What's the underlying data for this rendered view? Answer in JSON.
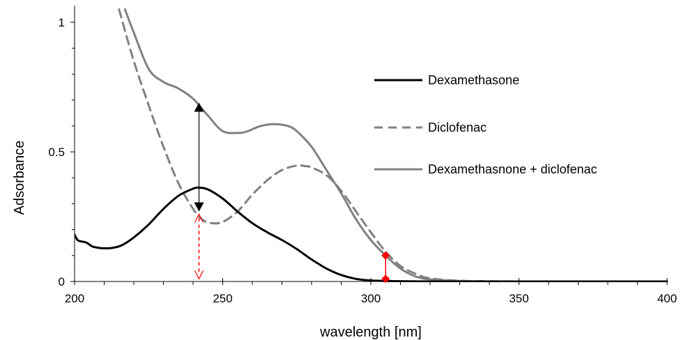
{
  "chart_data": {
    "type": "line",
    "xlabel": "wavelength [nm]",
    "ylabel": "Adsorbance",
    "xlim": [
      200,
      400
    ],
    "ylim": [
      0,
      1.05
    ],
    "x_ticks": [
      200,
      250,
      300,
      350,
      400
    ],
    "x_tick_labels": [
      "200",
      "250",
      "300",
      "350",
      "400"
    ],
    "y_ticks": [
      0,
      0.5,
      1
    ],
    "y_tick_labels": [
      "0",
      "0.5",
      "1"
    ],
    "grid": false,
    "legend_position": "right",
    "series": [
      {
        "name": "Dexamethasone",
        "color": "#000000",
        "style": "solid",
        "x": [
          200,
          201,
          202,
          204,
          206,
          208,
          210,
          213,
          216,
          220,
          225,
          230,
          235,
          240,
          242,
          245,
          250,
          255,
          260,
          265,
          270,
          275,
          280,
          285,
          290,
          295,
          300,
          305,
          310,
          320,
          330,
          350,
          380,
          400
        ],
        "y": [
          0.18,
          0.16,
          0.155,
          0.15,
          0.135,
          0.13,
          0.128,
          0.13,
          0.14,
          0.17,
          0.22,
          0.28,
          0.33,
          0.358,
          0.362,
          0.355,
          0.32,
          0.27,
          0.225,
          0.19,
          0.16,
          0.125,
          0.085,
          0.05,
          0.025,
          0.01,
          0.004,
          0.002,
          0.001,
          0.0,
          0.0,
          0.0,
          0.0,
          0.0
        ]
      },
      {
        "name": "Diclofenac",
        "color": "#808080",
        "style": "dashed",
        "x": [
          215,
          220,
          225,
          230,
          235,
          240,
          243,
          246,
          250,
          255,
          260,
          265,
          270,
          275,
          278,
          280,
          285,
          290,
          295,
          300,
          305,
          310,
          315,
          320,
          330,
          340,
          350,
          370,
          400
        ],
        "y": [
          1.05,
          0.85,
          0.68,
          0.52,
          0.38,
          0.28,
          0.24,
          0.225,
          0.23,
          0.27,
          0.335,
          0.39,
          0.43,
          0.447,
          0.445,
          0.44,
          0.41,
          0.35,
          0.27,
          0.19,
          0.115,
          0.06,
          0.03,
          0.012,
          0.003,
          0.001,
          0.0,
          0.0,
          0.0
        ]
      },
      {
        "name": "Dexamethasnone + diclofenac",
        "color": "#808080",
        "style": "solid",
        "x": [
          217,
          220,
          225,
          230,
          235,
          240,
          245,
          250,
          255,
          258,
          262,
          265,
          268,
          272,
          275,
          280,
          285,
          290,
          295,
          300,
          305,
          310,
          315,
          320,
          330,
          340,
          350,
          370,
          400
        ],
        "y": [
          1.05,
          0.96,
          0.82,
          0.77,
          0.745,
          0.705,
          0.64,
          0.58,
          0.573,
          0.578,
          0.597,
          0.605,
          0.607,
          0.6,
          0.58,
          0.52,
          0.43,
          0.34,
          0.24,
          0.16,
          0.1,
          0.05,
          0.02,
          0.008,
          0.002,
          0.0,
          0.0,
          0.0,
          0.0
        ]
      }
    ],
    "annotations": [
      {
        "kind": "double-arrow",
        "color": "#000000",
        "style": "solid",
        "x": 242,
        "y_from": 0.27,
        "y_to": 0.69
      },
      {
        "kind": "double-arrow",
        "color": "#ff0000",
        "style": "dashed",
        "x": 242,
        "y_from": 0.01,
        "y_to": 0.26
      },
      {
        "kind": "diamond-pair",
        "color": "#ff0000",
        "x": 305,
        "y_from": 0.01,
        "y_to": 0.1
      }
    ]
  }
}
